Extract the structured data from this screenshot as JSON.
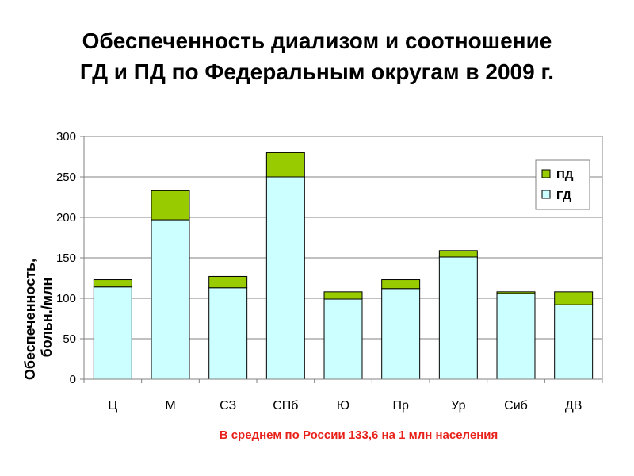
{
  "title_line1": "Обеспеченность диализом и соотношение",
  "title_line2": "ГД и ПД по Федеральным округам в 2009 г.",
  "note": "В среднем по России 133,6 на 1 млн населения",
  "colors": {
    "gd": "#ccffff",
    "pd": "#99cc00",
    "grid": "#808080",
    "note": "#e8221b"
  },
  "chart_data": {
    "type": "bar",
    "stacked": true,
    "categories": [
      "Ц",
      "М",
      "СЗ",
      "СПб",
      "Ю",
      "Пр",
      "Ур",
      "Сиб",
      "ДВ"
    ],
    "series": [
      {
        "name": "ГД",
        "color": "#ccffff",
        "values": [
          114,
          197,
          113,
          250,
          99,
          112,
          151,
          106,
          92
        ]
      },
      {
        "name": "ПД",
        "color": "#99cc00",
        "values": [
          9,
          36,
          14,
          30,
          9,
          11,
          8,
          2,
          16
        ]
      }
    ],
    "legend_order": [
      "ПД",
      "ГД"
    ],
    "ylabel": "Обеспеченность, больн./млн",
    "xlabel": "",
    "ylim": [
      0,
      300
    ],
    "yticks": [
      0,
      50,
      100,
      150,
      200,
      250,
      300
    ],
    "grid": true,
    "legend_position": "right"
  }
}
